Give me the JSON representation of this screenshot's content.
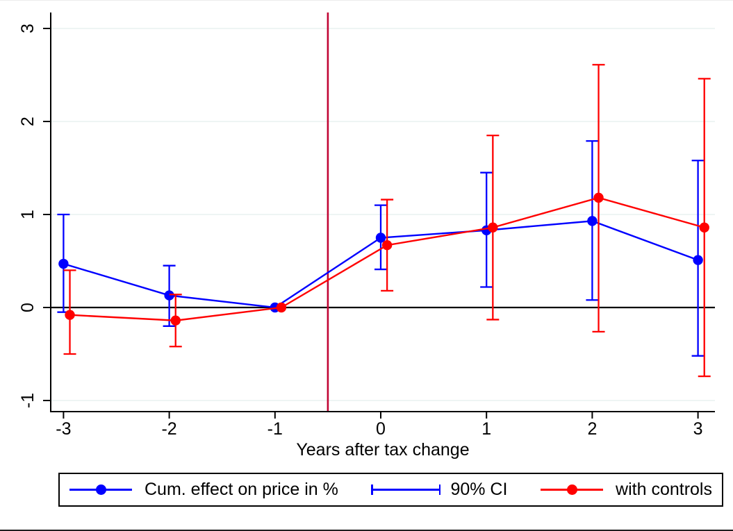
{
  "chart_data": {
    "type": "line",
    "title": "",
    "xlabel": "Years after tax change",
    "ylabel": "",
    "x": [
      -3,
      -2,
      -1,
      0,
      1,
      2,
      3
    ],
    "xticks": [
      -3,
      -2,
      -1,
      0,
      1,
      2,
      3
    ],
    "yticks": [
      -1,
      0,
      1,
      2,
      3
    ],
    "xlim": [
      -3.12,
      3.16
    ],
    "ylim": [
      -1.12,
      3.17
    ],
    "grid": "horizontal",
    "grid_color": "#e9f2f0",
    "reference_lines": {
      "vertical_x": -0.5,
      "vertical_color": "#c10534",
      "horizontal_y": 0,
      "horizontal_color": "#000000"
    },
    "series": [
      {
        "name": "Cum. effect on price in %",
        "color": "#0000ff",
        "x_offset": 0,
        "values": [
          0.47,
          0.13,
          0,
          0.75,
          0.83,
          0.93,
          0.51
        ],
        "ci_low": [
          -0.05,
          -0.2,
          null,
          0.41,
          0.22,
          0.08,
          -0.52
        ],
        "ci_high": [
          1.0,
          0.45,
          null,
          1.1,
          1.45,
          1.79,
          1.58
        ]
      },
      {
        "name": "with controls",
        "color": "#ff0000",
        "x_offset": 0.06,
        "values": [
          -0.08,
          -0.14,
          0,
          0.67,
          0.86,
          1.18,
          0.86
        ],
        "ci_low": [
          -0.5,
          -0.42,
          null,
          0.18,
          -0.13,
          -0.26,
          -0.74
        ],
        "ci_high": [
          0.4,
          0.14,
          null,
          1.16,
          1.85,
          2.61,
          2.46
        ]
      }
    ],
    "legend": [
      {
        "label": "Cum. effect on price in %",
        "symbol": "line-marker",
        "color": "#0000ff"
      },
      {
        "label": "90% CI",
        "symbol": "error-bar",
        "color": "#0000ff"
      },
      {
        "label": "with controls",
        "symbol": "line-marker",
        "color": "#ff0000"
      }
    ],
    "legend_position": "bottom",
    "ci_label": "90% CI"
  }
}
